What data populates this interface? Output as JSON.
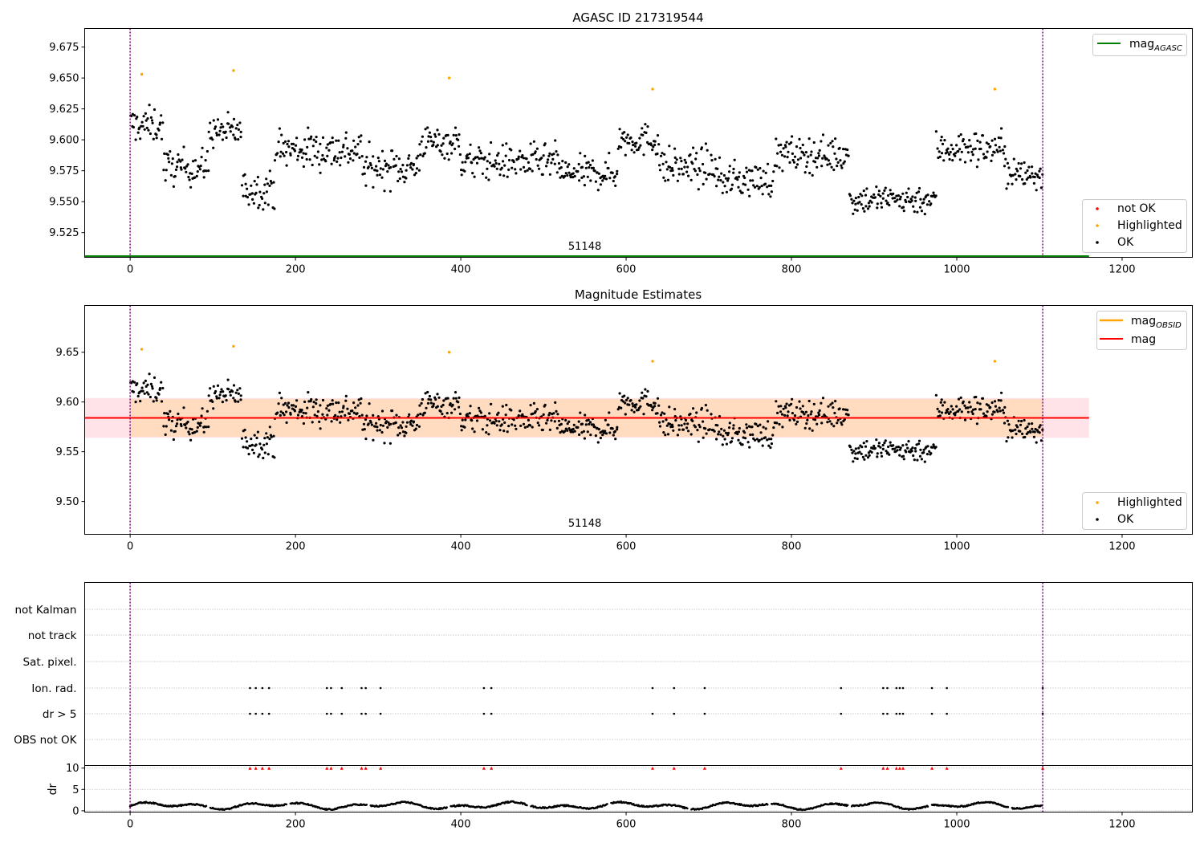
{
  "colors": {
    "ok": "#000000",
    "highlighted": "#ffa500",
    "not_ok": "#ff0000",
    "mag_agasc": "#008000",
    "mag_obsid": "#ffa500",
    "mag": "#ff0000",
    "band": "#ffc0cb",
    "band_inner": "#ffdab9",
    "vline": "#800080",
    "grid": "#b0b0b0"
  },
  "chart_data": [
    {
      "type": "scatter",
      "title": "AGASC ID 217319544",
      "xlim": [
        -55,
        1285
      ],
      "ylim": [
        9.505,
        9.69
      ],
      "xticks": [
        "0",
        "200",
        "400",
        "600",
        "800",
        "1000",
        "1200"
      ],
      "xtick_values": [
        0,
        200,
        400,
        600,
        800,
        1000,
        1200
      ],
      "yticks": [
        "9.525",
        "9.550",
        "9.575",
        "9.600",
        "9.625",
        "9.650",
        "9.675"
      ],
      "ytick_values": [
        9.525,
        9.55,
        9.575,
        9.6,
        9.625,
        9.65,
        9.675
      ],
      "obsid_label": "51148",
      "obsid_label_x": 550,
      "vlines": [
        0,
        1104
      ],
      "mag_agasc_line": {
        "y": 9.506,
        "x0": -55,
        "x1": 1160
      },
      "legend_lines": [
        {
          "name": "mag",
          "sub": "AGASC",
          "color_key": "mag_agasc"
        }
      ],
      "legend_markers": [
        {
          "name": "not OK",
          "color_key": "not_ok"
        },
        {
          "name": "Highlighted",
          "color_key": "highlighted"
        },
        {
          "name": "OK",
          "color_key": "ok"
        }
      ],
      "highlighted": [
        [
          14,
          9.653
        ],
        [
          125,
          9.656
        ],
        [
          386,
          9.65
        ],
        [
          632,
          9.641
        ],
        [
          1046,
          9.641
        ]
      ],
      "segments": [
        [
          0,
          40,
          9.612,
          0.012
        ],
        [
          40,
          95,
          9.578,
          0.012
        ],
        [
          95,
          135,
          9.607,
          0.011
        ],
        [
          135,
          175,
          9.56,
          0.012
        ],
        [
          175,
          280,
          9.592,
          0.014
        ],
        [
          280,
          350,
          9.578,
          0.013
        ],
        [
          350,
          400,
          9.598,
          0.011
        ],
        [
          400,
          520,
          9.582,
          0.012
        ],
        [
          520,
          590,
          9.573,
          0.011
        ],
        [
          590,
          640,
          9.6,
          0.011
        ],
        [
          640,
          710,
          9.578,
          0.013
        ],
        [
          710,
          780,
          9.568,
          0.012
        ],
        [
          780,
          870,
          9.588,
          0.012
        ],
        [
          870,
          975,
          9.552,
          0.01
        ],
        [
          975,
          1060,
          9.593,
          0.012
        ],
        [
          1060,
          1104,
          9.572,
          0.012
        ]
      ]
    },
    {
      "type": "scatter",
      "title": "Magnitude Estimates",
      "xlim": [
        -55,
        1285
      ],
      "ylim": [
        9.467,
        9.697
      ],
      "xticks": [
        "0",
        "200",
        "400",
        "600",
        "800",
        "1000",
        "1200"
      ],
      "xtick_values": [
        0,
        200,
        400,
        600,
        800,
        1000,
        1200
      ],
      "yticks": [
        "9.50",
        "9.55",
        "9.60",
        "9.65"
      ],
      "ytick_values": [
        9.5,
        9.55,
        9.6,
        9.65
      ],
      "obsid_label": "51148",
      "obsid_label_x": 550,
      "vlines": [
        0,
        1104
      ],
      "mag": 9.584,
      "band_outer": [
        9.564,
        9.604
      ],
      "band_inner": [
        9.565,
        9.603
      ],
      "band_x": [
        -55,
        1160
      ],
      "band_inner_x": [
        0,
        1104
      ],
      "legend_lines": [
        {
          "name": "mag",
          "sub": "OBSID",
          "color_key": "mag_obsid"
        },
        {
          "name": "mag",
          "sub": "",
          "color_key": "mag"
        }
      ],
      "legend_markers": [
        {
          "name": "Highlighted",
          "color_key": "highlighted"
        },
        {
          "name": "OK",
          "color_key": "ok"
        }
      ]
    },
    {
      "type": "scatter",
      "title": "",
      "categories": [
        "not Kalman",
        "not track",
        "Sat. pixel.",
        "Ion. rad.",
        "dr > 5",
        "OBS not OK"
      ],
      "flag_x": [
        145,
        152,
        160,
        168,
        238,
        243,
        256,
        280,
        285,
        303,
        428,
        437,
        632,
        658,
        695,
        860,
        911,
        916,
        927,
        931,
        935,
        970,
        988,
        1104
      ],
      "flagged_rows": [
        "Ion. rad.",
        "dr > 5"
      ],
      "xlim": [
        -55,
        1285
      ],
      "xticks": [
        "0",
        "200",
        "400",
        "600",
        "800",
        "1000",
        "1200"
      ],
      "xtick_values": [
        0,
        200,
        400,
        600,
        800,
        1000,
        1200
      ],
      "vlines": [
        0,
        1104
      ]
    },
    {
      "type": "scatter",
      "title": "",
      "ylabel": "dr",
      "ylim": [
        -0.3,
        10.6
      ],
      "yticks": [
        "0",
        "5",
        "10"
      ],
      "ytick_values": [
        0,
        5,
        10
      ],
      "xlim": [
        -55,
        1285
      ],
      "xticks": [
        "0",
        "200",
        "400",
        "600",
        "800",
        "1000",
        "1200"
      ],
      "xtick_values": [
        0,
        200,
        400,
        600,
        800,
        1000,
        1200
      ],
      "vlines": [
        0,
        1104
      ],
      "clipped_value": 10,
      "dr_baseline": 1.2,
      "dr_amplitude": 0.9
    }
  ]
}
